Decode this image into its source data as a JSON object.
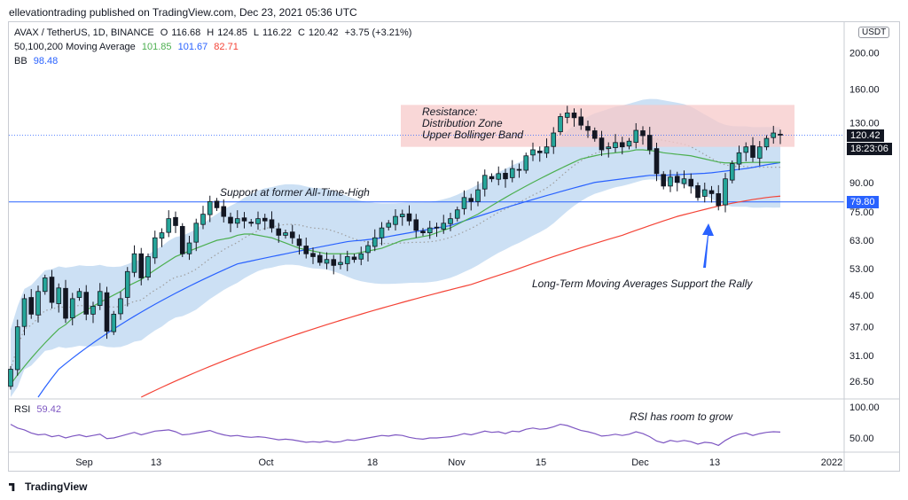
{
  "header": {
    "publisher": "ellevationtrading published on TradingView.com, Dec 23, 2021 05:36 UTC",
    "symbol_line": "AVAX / TetherUS, 1D, BINANCE",
    "ohlc": {
      "O": "116.68",
      "H": "124.85",
      "L": "116.22",
      "C": "120.42",
      "change": "+3.75 (+3.21%)"
    },
    "ma_label": "50,100,200 Moving Average",
    "ma_values": [
      "101.85",
      "101.67",
      "82.71"
    ],
    "bb_label": "BB",
    "bb_value": "98.48",
    "currency": "USDT"
  },
  "colors": {
    "up": "#26a69a",
    "down": "#131722",
    "ma50": "#4caf50",
    "ma100": "#2962ff",
    "ma200": "#f44336",
    "bb_fill": "#bbd6f0",
    "resistance_fill": "#f7c9c9",
    "rsi": "#7e57c2",
    "price_badge": "#131722",
    "support_badge": "#2962ff"
  },
  "annotations": {
    "resistance": [
      "Resistance:",
      "Distribution Zone",
      "Upper Bollinger Band"
    ],
    "support": "Support at former All-Time-High",
    "ma_support": "Long-Term Moving Averages Support the Rally",
    "rsi": "RSI has room to grow"
  },
  "badges": {
    "price": "120.42",
    "countdown": "18:23:06",
    "support": "79.80"
  },
  "rsi": {
    "label": "RSI",
    "value": "59.42",
    "ticks": [
      "100.00",
      "50.00"
    ]
  },
  "footer": {
    "brand": "TradingView"
  },
  "chart_data": {
    "type": "candlestick",
    "y_scale": "log",
    "ylim": [
      24,
      240
    ],
    "y_ticks": [
      26.5,
      31.0,
      37.0,
      45.0,
      53.0,
      63.0,
      75.0,
      90.0,
      110.0,
      130.0,
      160.0,
      200.0
    ],
    "y_tick_labels": [
      "26.50",
      "31.00",
      "37.00",
      "45.00",
      "53.00",
      "63.00",
      "75.00",
      "90.00",
      "110.00",
      "130.00",
      "160.00",
      "200.00"
    ],
    "x_tick_labels": [
      "Sep",
      "13",
      "Oct",
      "18",
      "Nov",
      "15",
      "Dec",
      "13",
      "2022"
    ],
    "support_level": 79.8,
    "resistance_zone": [
      112,
      145
    ],
    "close": [
      28.5,
      37,
      44,
      40,
      46,
      50,
      43,
      47,
      39,
      44,
      46,
      40,
      42,
      46,
      36,
      40,
      44,
      52,
      58,
      50,
      57,
      64,
      66,
      72,
      69,
      58,
      62,
      70,
      74,
      80,
      77,
      73,
      70,
      72,
      71,
      70,
      72,
      71,
      68,
      65,
      66,
      64,
      61,
      58,
      57,
      55,
      56,
      54,
      55,
      57,
      56,
      58,
      61,
      64,
      68,
      70,
      73,
      74,
      71,
      67,
      66,
      68,
      68,
      70,
      72,
      76,
      82,
      80,
      86,
      94,
      92,
      95,
      92,
      98,
      97,
      106,
      110,
      108,
      112,
      122,
      135,
      138,
      134,
      128,
      124,
      118,
      110,
      112,
      115,
      112,
      116,
      124,
      120,
      110,
      95,
      88,
      93,
      90,
      92,
      88,
      82,
      86,
      84,
      78,
      92,
      101,
      108,
      112,
      105,
      112,
      118,
      122,
      120.42
    ],
    "ma50": [
      26,
      27.5,
      29,
      30.5,
      32,
      33.5,
      35,
      36.5,
      37.5,
      39,
      40,
      41,
      42,
      43,
      44,
      45,
      46,
      47.5,
      48.5,
      49.5,
      51,
      52.5,
      54,
      55.5,
      57,
      58,
      59,
      60,
      61,
      62,
      63,
      63.5,
      64,
      65,
      65.5,
      65.5,
      65,
      64.5,
      64,
      63,
      62,
      61,
      60,
      59.5,
      59,
      58.5,
      58,
      58,
      58,
      58,
      58,
      58.5,
      59,
      59.5,
      60,
      61,
      62,
      63,
      63.5,
      64,
      64.5,
      65,
      66,
      67,
      68,
      69.5,
      71,
      72.5,
      74,
      76,
      78,
      80,
      82,
      84,
      86,
      88,
      90,
      92,
      94,
      96,
      98,
      100,
      102,
      104,
      105,
      106,
      107,
      107.5,
      108,
      108.5,
      109,
      110,
      110,
      109.5,
      109,
      108,
      107.5,
      107,
      106.5,
      106,
      105,
      104,
      103,
      102,
      101.5,
      101.5,
      101.5,
      101.7,
      101.8,
      101.8,
      101.85,
      101.85,
      101.85
    ],
    "ma100": [
      18,
      19.5,
      21,
      22.5,
      24,
      25.5,
      27,
      28.5,
      29.5,
      30.5,
      31.5,
      32.5,
      33.5,
      34.5,
      35.5,
      36.5,
      37.5,
      38.5,
      39.5,
      40.5,
      41.5,
      42.5,
      43.5,
      44.5,
      45.5,
      46.5,
      47.5,
      48.5,
      49.5,
      50.5,
      51.5,
      52.5,
      53.5,
      54.5,
      55,
      55.5,
      56,
      56.5,
      57,
      57.5,
      58,
      58.5,
      59,
      59.5,
      60,
      60.5,
      61,
      61.5,
      62,
      62.5,
      62.8,
      63,
      63.3,
      63.6,
      64,
      64.5,
      65,
      65.5,
      66,
      66.5,
      67,
      67.5,
      68,
      68.5,
      69,
      70,
      71,
      72,
      73,
      74,
      75,
      76,
      77,
      78,
      79,
      80,
      81,
      82,
      83,
      84,
      85,
      86,
      87,
      88,
      89,
      90,
      90.5,
      91,
      91.5,
      92,
      92.5,
      93,
      93.5,
      94,
      94,
      94,
      94.2,
      94.4,
      94.6,
      94.8,
      95,
      95.2,
      95.5,
      96,
      96.5,
      97,
      97.5,
      98,
      98.7,
      99.5,
      100.3,
      101,
      101.67
    ],
    "ma200": [
      10,
      11,
      12,
      13,
      14,
      15,
      16,
      17,
      18,
      19,
      19.5,
      20,
      20.5,
      21,
      21.5,
      22,
      22.5,
      23,
      23.5,
      24,
      24.5,
      25,
      25.5,
      26,
      26.5,
      27,
      27.5,
      28,
      28.5,
      29,
      29.5,
      30,
      30.5,
      31,
      31.5,
      32,
      32.5,
      33,
      33.5,
      34,
      34.5,
      35,
      35.5,
      36,
      36.5,
      37,
      37.5,
      38,
      38.5,
      39,
      39.5,
      40,
      40.5,
      41,
      41.5,
      42,
      42.5,
      43,
      43.5,
      44,
      44.5,
      45,
      45.5,
      46,
      46.5,
      47,
      47.5,
      48,
      48.7,
      49.4,
      50.1,
      50.8,
      51.5,
      52.2,
      53,
      53.8,
      54.6,
      55.4,
      56.2,
      57,
      57.8,
      58.6,
      59.4,
      60.2,
      61,
      61.8,
      62.6,
      63.4,
      64.2,
      65,
      66,
      67,
      68,
      69,
      70,
      71,
      72,
      73,
      73.8,
      74.6,
      75.4,
      76.2,
      77,
      77.8,
      78.5,
      79.2,
      79.8,
      80.4,
      81,
      81.5,
      82,
      82.4,
      82.71
    ],
    "bb_upper_factor": 1.28,
    "bb_lower_factor": 0.78,
    "rsi_values": [
      72,
      66,
      63,
      58,
      55,
      56,
      52,
      54,
      50,
      53,
      55,
      52,
      54,
      56,
      49,
      50,
      53,
      56,
      59,
      55,
      58,
      61,
      62,
      63,
      60,
      55,
      56,
      58,
      60,
      62,
      58,
      55,
      53,
      54,
      52,
      51,
      52,
      51,
      49,
      47,
      48,
      47,
      45,
      43,
      44,
      43,
      45,
      43,
      44,
      47,
      46,
      48,
      50,
      52,
      54,
      53,
      55,
      54,
      51,
      49,
      48,
      50,
      50,
      51,
      52,
      54,
      57,
      55,
      58,
      61,
      59,
      60,
      57,
      61,
      60,
      64,
      66,
      64,
      65,
      68,
      72,
      70,
      66,
      62,
      60,
      57,
      53,
      54,
      56,
      54,
      56,
      60,
      57,
      52,
      45,
      42,
      46,
      44,
      46,
      44,
      40,
      43,
      42,
      38,
      46,
      52,
      56,
      58,
      54,
      57,
      59,
      60,
      59.42
    ]
  }
}
